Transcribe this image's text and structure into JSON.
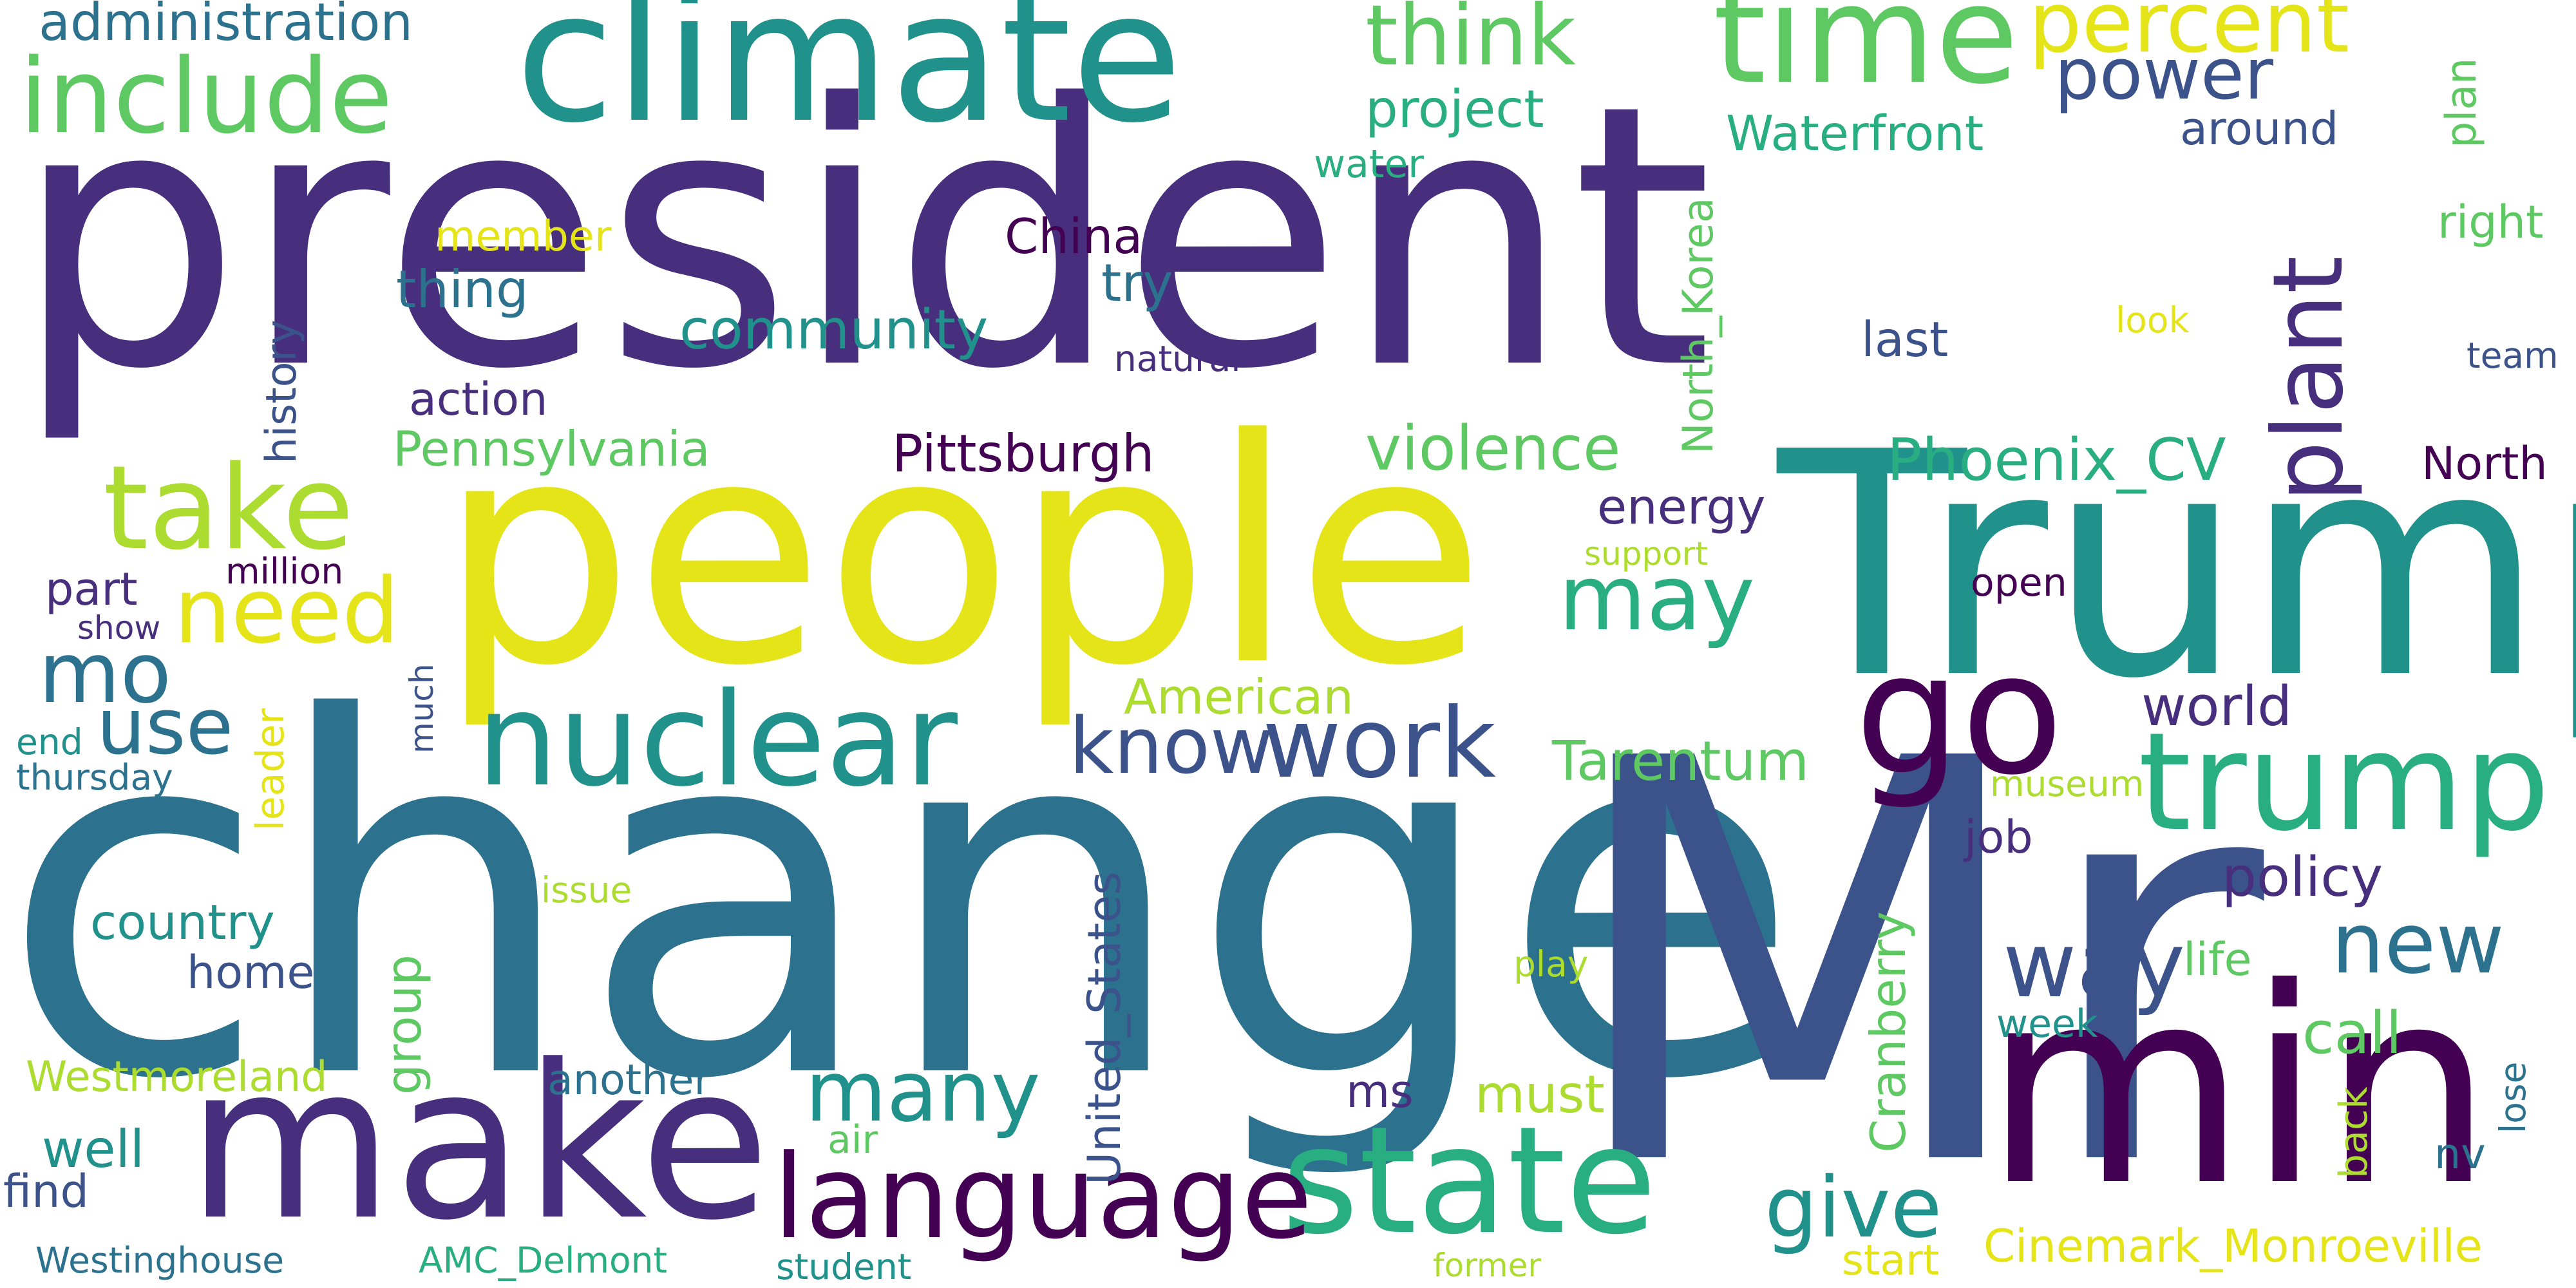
{
  "colors": {
    "background": "#ffffff",
    "palette": {
      "dark_purple": "#440154",
      "indigo": "#472f7d",
      "blue": "#3b528b",
      "steel": "#2c728e",
      "teal": "#21918c",
      "green_teal": "#28ae80",
      "green": "#5ec962",
      "lime": "#addc30",
      "yellow": "#e5e419"
    }
  },
  "words": [
    {
      "text": "president",
      "color": "#472f7d"
    },
    {
      "text": "change",
      "color": "#2c728e"
    },
    {
      "text": "Mr",
      "color": "#3b528b"
    },
    {
      "text": "people",
      "color": "#e5e419"
    },
    {
      "text": "Trump",
      "color": "#21918c"
    },
    {
      "text": "climate",
      "color": "#21918c"
    },
    {
      "text": "min",
      "color": "#440154"
    },
    {
      "text": "make",
      "color": "#472f7d"
    },
    {
      "text": "state",
      "color": "#28ae80"
    },
    {
      "text": "time",
      "color": "#5ec962"
    },
    {
      "text": "trump",
      "color": "#28ae80"
    },
    {
      "text": "nuclear",
      "color": "#21918c"
    },
    {
      "text": "go",
      "color": "#440154"
    },
    {
      "text": "language",
      "color": "#440154"
    },
    {
      "text": "take",
      "color": "#addc30"
    },
    {
      "text": "include",
      "color": "#5ec962"
    },
    {
      "text": "need",
      "color": "#e5e419"
    },
    {
      "text": "mo",
      "color": "#2c728e"
    },
    {
      "text": "use",
      "color": "#2c728e"
    },
    {
      "text": "work",
      "color": "#3b528b"
    },
    {
      "text": "know",
      "color": "#3b528b"
    },
    {
      "text": "many",
      "color": "#21918c"
    },
    {
      "text": "way",
      "color": "#3b528b"
    },
    {
      "text": "new",
      "color": "#2c728e"
    },
    {
      "text": "give",
      "color": "#21918c"
    },
    {
      "text": "may",
      "color": "#28ae80"
    },
    {
      "text": "think",
      "color": "#5ec962"
    },
    {
      "text": "percent",
      "color": "#e5e419"
    },
    {
      "text": "power",
      "color": "#3b528b"
    },
    {
      "text": "plant",
      "color": "#472f7d"
    },
    {
      "text": "violence",
      "color": "#5ec962"
    },
    {
      "text": "Phoenix_CV",
      "color": "#28ae80"
    },
    {
      "text": "Pennsylvania",
      "color": "#5ec962"
    },
    {
      "text": "Pittsburgh",
      "color": "#440154"
    },
    {
      "text": "community",
      "color": "#21918c"
    },
    {
      "text": "Tarentum",
      "color": "#5ec962"
    },
    {
      "text": "world",
      "color": "#472f7d"
    },
    {
      "text": "policy",
      "color": "#472f7d"
    },
    {
      "text": "call",
      "color": "#5ec962"
    },
    {
      "text": "must",
      "color": "#addc30"
    },
    {
      "text": "administration",
      "color": "#2c728e"
    },
    {
      "text": "project",
      "color": "#28ae80"
    },
    {
      "text": "Waterfront",
      "color": "#28ae80"
    },
    {
      "text": "around",
      "color": "#3b528b"
    },
    {
      "text": "water",
      "color": "#28ae80"
    },
    {
      "text": "plan",
      "color": "#5ec962"
    },
    {
      "text": "right",
      "color": "#5ec962"
    },
    {
      "text": "member",
      "color": "#e5e419"
    },
    {
      "text": "China",
      "color": "#440154"
    },
    {
      "text": "try",
      "color": "#2c728e"
    },
    {
      "text": "thing",
      "color": "#2c728e"
    },
    {
      "text": "history",
      "color": "#3b528b"
    },
    {
      "text": "last",
      "color": "#3b528b"
    },
    {
      "text": "look",
      "color": "#e5e419"
    },
    {
      "text": "natural",
      "color": "#472f7d"
    },
    {
      "text": "team",
      "color": "#3b528b"
    },
    {
      "text": "action",
      "color": "#472f7d"
    },
    {
      "text": "North_Korea",
      "color": "#5ec962"
    },
    {
      "text": "energy",
      "color": "#472f7d"
    },
    {
      "text": "North",
      "color": "#440154"
    },
    {
      "text": "support",
      "color": "#addc30"
    },
    {
      "text": "million",
      "color": "#440154"
    },
    {
      "text": "part",
      "color": "#472f7d"
    },
    {
      "text": "show",
      "color": "#472f7d"
    },
    {
      "text": "open",
      "color": "#440154"
    },
    {
      "text": "American",
      "color": "#addc30"
    },
    {
      "text": "leader",
      "color": "#e5e419"
    },
    {
      "text": "much",
      "color": "#3b528b"
    },
    {
      "text": "end",
      "color": "#21918c"
    },
    {
      "text": "thursday",
      "color": "#2c728e"
    },
    {
      "text": "museum",
      "color": "#addc30"
    },
    {
      "text": "job",
      "color": "#472f7d"
    },
    {
      "text": "United_States",
      "color": "#3b528b"
    },
    {
      "text": "country",
      "color": "#21918c"
    },
    {
      "text": "issue",
      "color": "#addc30"
    },
    {
      "text": "home",
      "color": "#3b528b"
    },
    {
      "text": "group",
      "color": "#5ec962"
    },
    {
      "text": "Cranberry",
      "color": "#5ec962"
    },
    {
      "text": "life",
      "color": "#5ec962"
    },
    {
      "text": "play",
      "color": "#addc30"
    },
    {
      "text": "week",
      "color": "#21918c"
    },
    {
      "text": "Westmoreland",
      "color": "#addc30"
    },
    {
      "text": "another",
      "color": "#2c728e"
    },
    {
      "text": "ms",
      "color": "#472f7d"
    },
    {
      "text": "lose",
      "color": "#2c728e"
    },
    {
      "text": "back",
      "color": "#addc30"
    },
    {
      "text": "well",
      "color": "#21918c"
    },
    {
      "text": "air",
      "color": "#5ec962"
    },
    {
      "text": "nv",
      "color": "#2c728e"
    },
    {
      "text": "find",
      "color": "#3b528b"
    },
    {
      "text": "Westinghouse",
      "color": "#2c728e"
    },
    {
      "text": "AMC_Delmont",
      "color": "#28ae80"
    },
    {
      "text": "student",
      "color": "#21918c"
    },
    {
      "text": "former",
      "color": "#addc30"
    },
    {
      "text": "start",
      "color": "#e5e419"
    },
    {
      "text": "Cinemark_Monroeville",
      "color": "#e5e419"
    }
  ]
}
